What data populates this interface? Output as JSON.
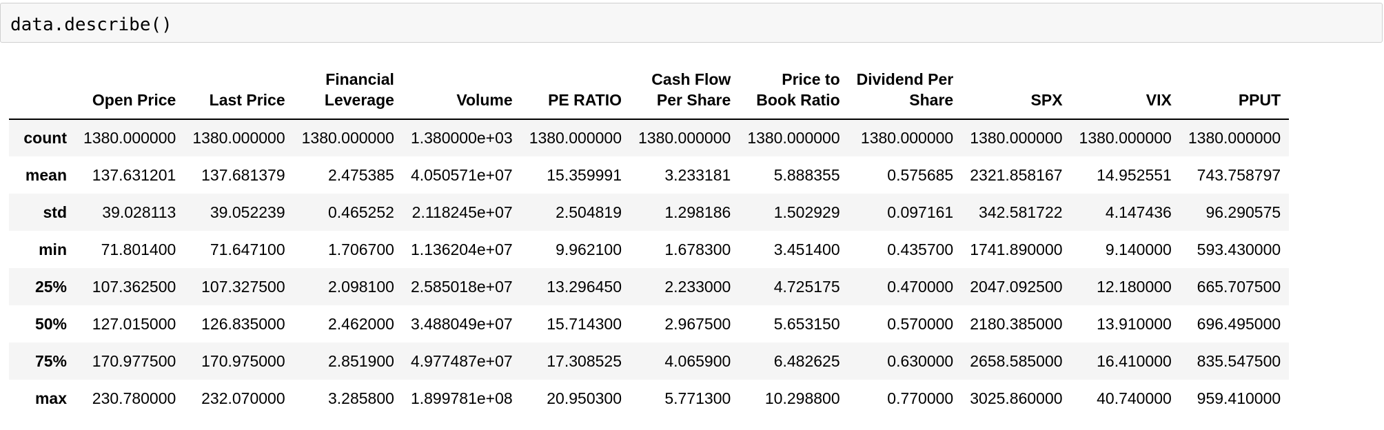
{
  "input_cell": {
    "code": "data.describe()"
  },
  "table": {
    "columns": [
      "Open Price",
      "Last Price",
      "Financial Leverage",
      "Volume",
      "PE RATIO",
      "Cash Flow Per Share",
      "Price to Book Ratio",
      "Dividend Per Share",
      "SPX",
      "VIX",
      "PPUT"
    ],
    "rows": [
      {
        "label": "count",
        "values": [
          "1380.000000",
          "1380.000000",
          "1380.000000",
          "1.380000e+03",
          "1380.000000",
          "1380.000000",
          "1380.000000",
          "1380.000000",
          "1380.000000",
          "1380.000000",
          "1380.000000"
        ]
      },
      {
        "label": "mean",
        "values": [
          "137.631201",
          "137.681379",
          "2.475385",
          "4.050571e+07",
          "15.359991",
          "3.233181",
          "5.888355",
          "0.575685",
          "2321.858167",
          "14.952551",
          "743.758797"
        ]
      },
      {
        "label": "std",
        "values": [
          "39.028113",
          "39.052239",
          "0.465252",
          "2.118245e+07",
          "2.504819",
          "1.298186",
          "1.502929",
          "0.097161",
          "342.581722",
          "4.147436",
          "96.290575"
        ]
      },
      {
        "label": "min",
        "values": [
          "71.801400",
          "71.647100",
          "1.706700",
          "1.136204e+07",
          "9.962100",
          "1.678300",
          "3.451400",
          "0.435700",
          "1741.890000",
          "9.140000",
          "593.430000"
        ]
      },
      {
        "label": "25%",
        "values": [
          "107.362500",
          "107.327500",
          "2.098100",
          "2.585018e+07",
          "13.296450",
          "2.233000",
          "4.725175",
          "0.470000",
          "2047.092500",
          "12.180000",
          "665.707500"
        ]
      },
      {
        "label": "50%",
        "values": [
          "127.015000",
          "126.835000",
          "2.462000",
          "3.488049e+07",
          "15.714300",
          "2.967500",
          "5.653150",
          "0.570000",
          "2180.385000",
          "13.910000",
          "696.495000"
        ]
      },
      {
        "label": "75%",
        "values": [
          "170.977500",
          "170.975000",
          "2.851900",
          "4.977487e+07",
          "17.308525",
          "4.065900",
          "6.482625",
          "0.630000",
          "2658.585000",
          "16.410000",
          "835.547500"
        ]
      },
      {
        "label": "max",
        "values": [
          "230.780000",
          "232.070000",
          "3.285800",
          "1.899781e+08",
          "20.950300",
          "5.771300",
          "10.298800",
          "0.770000",
          "3025.860000",
          "40.740000",
          "959.410000"
        ]
      }
    ]
  }
}
